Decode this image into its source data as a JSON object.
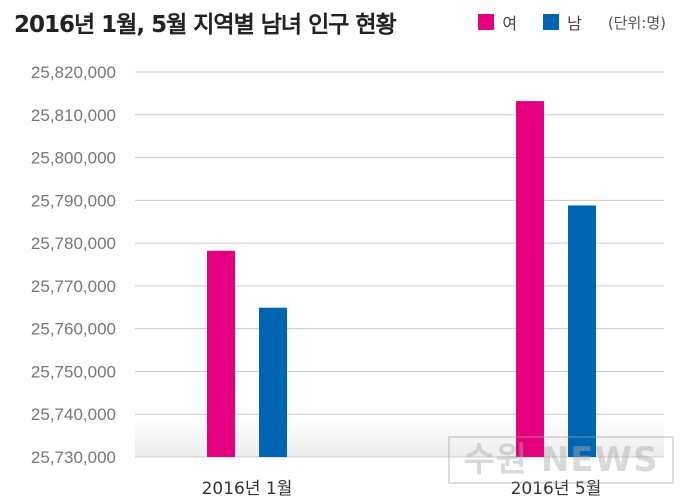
{
  "title": "2016년 1월, 5월 지역별 남녀 인구 현황",
  "unit_note": "(단위:명)",
  "watermark_text": "수원 NEWS",
  "colors": {
    "female": "#e4007f",
    "male": "#0066b3",
    "grid": "#cccccc",
    "axis_text": "#777777"
  },
  "chart_data": {
    "type": "bar",
    "title": "2016년 1월, 5월 지역별 남녀 인구 현황",
    "categories": [
      "2016년 1월",
      "2016년 5월"
    ],
    "series": [
      {
        "name": "여",
        "values": [
          25778200,
          25813200
        ]
      },
      {
        "name": "남",
        "values": [
          25764900,
          25788800
        ]
      }
    ],
    "ylim": [
      25730000,
      25820000
    ],
    "yticks": [
      25730000,
      25740000,
      25750000,
      25760000,
      25770000,
      25780000,
      25790000,
      25800000,
      25810000,
      25820000
    ],
    "ytick_labels": [
      "25,730,000",
      "25,740,000",
      "25,750,000",
      "25,760,000",
      "25,770,000",
      "25,780,000",
      "25,790,000",
      "25,800,000",
      "25,810,000",
      "25,820,000"
    ],
    "grid": true,
    "legend_position": "top-right",
    "unit": "(단위:명)"
  }
}
